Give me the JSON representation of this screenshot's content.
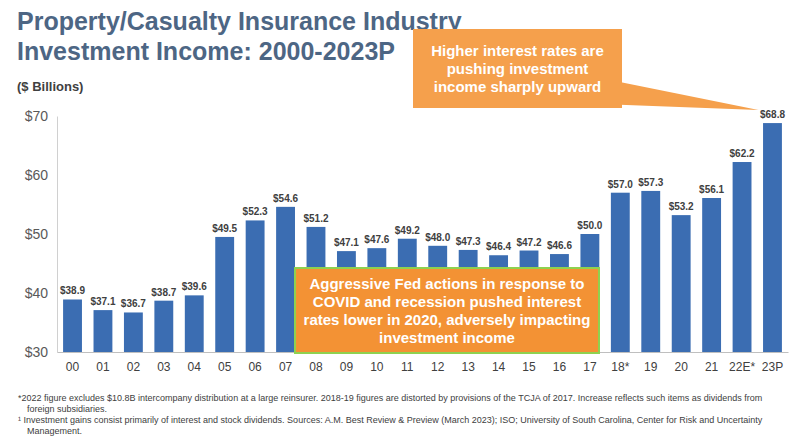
{
  "chart_data": {
    "type": "bar",
    "title": "Property/Casualty Insurance Industry Investment Income: 2000-2023P",
    "subtitle": "($ Billions)",
    "categories": [
      "00",
      "01",
      "02",
      "03",
      "04",
      "05",
      "06",
      "07",
      "08",
      "09",
      "10",
      "11",
      "12",
      "13",
      "14",
      "15",
      "16",
      "17",
      "18*",
      "19",
      "20",
      "21",
      "22E*",
      "23P"
    ],
    "values": [
      38.9,
      37.1,
      36.7,
      38.7,
      39.6,
      49.5,
      52.3,
      54.6,
      51.2,
      47.1,
      47.6,
      49.2,
      48.0,
      47.3,
      46.4,
      47.2,
      46.6,
      50.0,
      57.0,
      57.3,
      53.2,
      56.1,
      62.2,
      68.8
    ],
    "value_labels": [
      "$38.9",
      "$37.1",
      "$36.7",
      "$38.7",
      "$39.6",
      "$49.5",
      "$52.3",
      "$54.6",
      "$51.2",
      "$47.1",
      "$47.6",
      "$49.2",
      "$48.0",
      "$47.3",
      "$46.4",
      "$47.2",
      "$46.6",
      "$50.0",
      "$57.0",
      "$57.3",
      "$53.2",
      "$56.1",
      "$62.2",
      "$68.8"
    ],
    "color": "#3b6db2",
    "ylim": [
      30,
      70
    ],
    "yticks": [
      {
        "value": 30,
        "label": "$30"
      },
      {
        "value": 40,
        "label": "$40"
      },
      {
        "value": 50,
        "label": "$50"
      },
      {
        "value": 60,
        "label": "$60"
      },
      {
        "value": 70,
        "label": "$70"
      }
    ],
    "grid": false,
    "data_labels": true,
    "annotations": [
      "Higher interest rates are pushing investment income sharply upward",
      "Aggressive Fed actions in response to COVID and recession pushed interest rates lower in 2020, adversely impacting investment income"
    ],
    "footnotes": [
      "*2022 figure excludes $10.8B intercompany distribution at a large reinsurer. 2018-19 figures are distorted by provisions of the TCJA of 2017. Increase reflects such items as dividends from foreign subsidiaries.",
      "¹ Investment gains consist primarily of interest and stock dividends. Sources: A.M. Best Review & Preview (March 2023); ISO; University of South Carolina, Center for Risk and Uncertainty Management."
    ]
  }
}
